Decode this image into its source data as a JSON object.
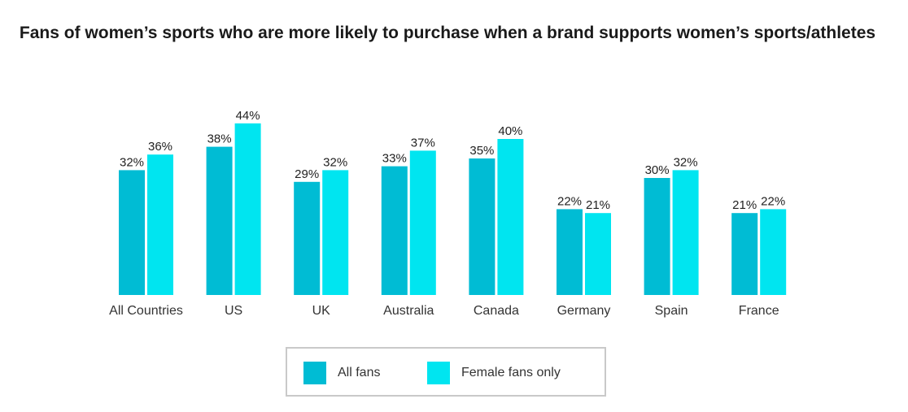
{
  "chart_data": {
    "type": "bar",
    "title": "Fans of women’s sports who are more likely to purchase when a brand supports women’s sports/athletes",
    "categories": [
      "All Countries",
      "US",
      "UK",
      "Australia",
      "Canada",
      "Germany",
      "Spain",
      "France"
    ],
    "series": [
      {
        "name": "All fans",
        "color": "#00bcd4",
        "values": [
          32,
          38,
          29,
          33,
          35,
          22,
          30,
          21
        ],
        "labels": [
          "32%",
          "38%",
          "29%",
          "33%",
          "35%",
          "22%",
          "30%",
          "21%"
        ]
      },
      {
        "name": "Female fans only",
        "color": "#00e5f0",
        "values": [
          36,
          44,
          32,
          37,
          40,
          21,
          32,
          22
        ],
        "labels": [
          "36%",
          "44%",
          "32%",
          "37%",
          "40%",
          "21%",
          "32%",
          "22%"
        ]
      }
    ],
    "value_format": "percent",
    "ylim": [
      0,
      44
    ],
    "grid": false,
    "legend_position": "bottom"
  }
}
